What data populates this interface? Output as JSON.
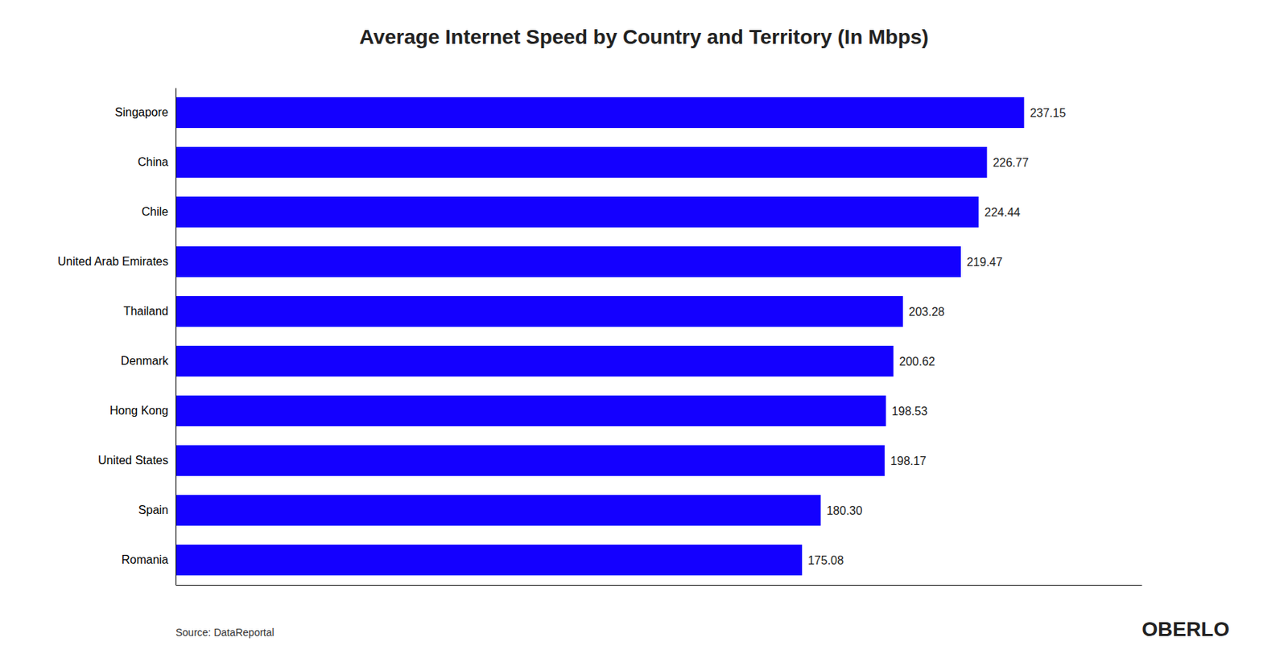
{
  "chart_data": {
    "type": "bar",
    "orientation": "horizontal",
    "title": "Average Internet Speed by Country and Territory (In Mbps)",
    "categories": [
      "Singapore",
      "China",
      "Chile",
      "United Arab Emirates",
      "Thailand",
      "Denmark",
      "Hong Kong",
      "United States",
      "Spain",
      "Romania"
    ],
    "values": [
      237.15,
      226.77,
      224.44,
      219.47,
      203.28,
      200.62,
      198.53,
      198.17,
      180.3,
      175.08
    ],
    "value_labels": [
      "237.15",
      "226.77",
      "224.44",
      "219.47",
      "203.28",
      "200.62",
      "198.53",
      "198.17",
      "180.30",
      "175.08"
    ],
    "data_labels": true,
    "color": "#1400ff",
    "xlim": [
      0,
      270
    ],
    "tick_labels": "y",
    "grid": false,
    "annotations": [
      "Source: DataReportal",
      "OBERLO"
    ]
  }
}
